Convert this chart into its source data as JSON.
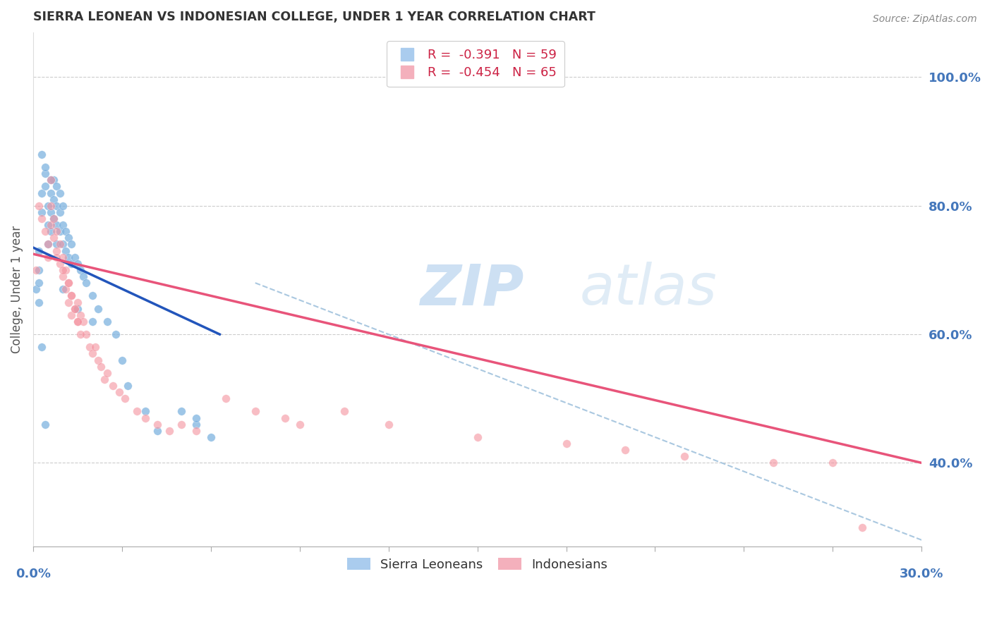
{
  "title": "SIERRA LEONEAN VS INDONESIAN COLLEGE, UNDER 1 YEAR CORRELATION CHART",
  "source": "Source: ZipAtlas.com",
  "ylabel": "College, Under 1 year",
  "ylabel_right_ticks": [
    "100.0%",
    "80.0%",
    "60.0%",
    "40.0%"
  ],
  "ylabel_right_vals": [
    1.0,
    0.8,
    0.6,
    0.4
  ],
  "blue_color": "#7eb3e0",
  "pink_color": "#f4919e",
  "blue_line_color": "#2255bb",
  "pink_line_color": "#e8547a",
  "dashed_line_color": "#aac8e0",
  "axis_label_color": "#4477bb",
  "xlim": [
    0.0,
    0.3
  ],
  "ylim": [
    0.27,
    1.07
  ],
  "blue_scatter_x": [
    0.001,
    0.002,
    0.002,
    0.003,
    0.003,
    0.004,
    0.004,
    0.005,
    0.005,
    0.005,
    0.006,
    0.006,
    0.006,
    0.007,
    0.007,
    0.007,
    0.008,
    0.008,
    0.008,
    0.008,
    0.009,
    0.009,
    0.009,
    0.01,
    0.01,
    0.01,
    0.011,
    0.011,
    0.012,
    0.012,
    0.013,
    0.013,
    0.014,
    0.015,
    0.016,
    0.017,
    0.018,
    0.02,
    0.022,
    0.025,
    0.028,
    0.03,
    0.032,
    0.038,
    0.042,
    0.05,
    0.055,
    0.06,
    0.003,
    0.004,
    0.006,
    0.01,
    0.015,
    0.02,
    0.002,
    0.002,
    0.003,
    0.004,
    0.055
  ],
  "blue_scatter_y": [
    0.67,
    0.73,
    0.7,
    0.82,
    0.79,
    0.85,
    0.83,
    0.8,
    0.77,
    0.74,
    0.82,
    0.79,
    0.76,
    0.84,
    0.81,
    0.78,
    0.83,
    0.8,
    0.77,
    0.74,
    0.82,
    0.79,
    0.76,
    0.8,
    0.77,
    0.74,
    0.76,
    0.73,
    0.75,
    0.72,
    0.74,
    0.71,
    0.72,
    0.71,
    0.7,
    0.69,
    0.68,
    0.66,
    0.64,
    0.62,
    0.6,
    0.56,
    0.52,
    0.48,
    0.45,
    0.48,
    0.46,
    0.44,
    0.88,
    0.86,
    0.84,
    0.67,
    0.64,
    0.62,
    0.65,
    0.68,
    0.58,
    0.46,
    0.47
  ],
  "pink_scatter_x": [
    0.001,
    0.002,
    0.003,
    0.004,
    0.005,
    0.005,
    0.006,
    0.006,
    0.007,
    0.007,
    0.008,
    0.008,
    0.009,
    0.009,
    0.01,
    0.01,
    0.011,
    0.011,
    0.012,
    0.012,
    0.013,
    0.013,
    0.014,
    0.015,
    0.015,
    0.016,
    0.017,
    0.018,
    0.019,
    0.02,
    0.021,
    0.022,
    0.023,
    0.024,
    0.025,
    0.027,
    0.029,
    0.031,
    0.035,
    0.038,
    0.042,
    0.046,
    0.05,
    0.055,
    0.065,
    0.075,
    0.085,
    0.09,
    0.105,
    0.12,
    0.15,
    0.18,
    0.2,
    0.22,
    0.25,
    0.27,
    0.006,
    0.008,
    0.01,
    0.012,
    0.013,
    0.014,
    0.015,
    0.016,
    0.28
  ],
  "pink_scatter_y": [
    0.7,
    0.8,
    0.78,
    0.76,
    0.74,
    0.72,
    0.8,
    0.77,
    0.78,
    0.75,
    0.76,
    0.73,
    0.74,
    0.71,
    0.72,
    0.69,
    0.7,
    0.67,
    0.68,
    0.65,
    0.66,
    0.63,
    0.64,
    0.65,
    0.62,
    0.63,
    0.62,
    0.6,
    0.58,
    0.57,
    0.58,
    0.56,
    0.55,
    0.53,
    0.54,
    0.52,
    0.51,
    0.5,
    0.48,
    0.47,
    0.46,
    0.45,
    0.46,
    0.45,
    0.5,
    0.48,
    0.47,
    0.46,
    0.48,
    0.46,
    0.44,
    0.43,
    0.42,
    0.41,
    0.4,
    0.4,
    0.84,
    0.72,
    0.7,
    0.68,
    0.66,
    0.64,
    0.62,
    0.6,
    0.3
  ],
  "blue_trend_x": [
    0.0,
    0.063
  ],
  "blue_trend_y": [
    0.735,
    0.6
  ],
  "pink_trend_x": [
    0.0,
    0.3
  ],
  "pink_trend_y": [
    0.725,
    0.4
  ],
  "dashed_trend_x": [
    0.075,
    0.3
  ],
  "dashed_trend_y": [
    0.68,
    0.28
  ],
  "legend_r1": "R =  -0.391   N = 59",
  "legend_r2": "R =  -0.454   N = 65",
  "legend_label1": "Sierra Leoneans",
  "legend_label2": "Indonesians"
}
